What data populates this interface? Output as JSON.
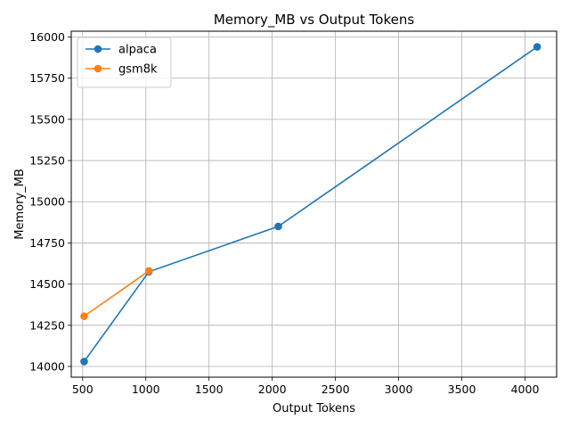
{
  "chart_data": {
    "type": "line",
    "title": "Memory_MB vs Output Tokens",
    "xlabel": "Output Tokens",
    "ylabel": "Memory_MB",
    "xlim": [
      410,
      4250
    ],
    "ylim": [
      13935,
      16035
    ],
    "xticks": [
      500,
      1000,
      1500,
      2000,
      2500,
      3000,
      3500,
      4000
    ],
    "yticks": [
      14000,
      14250,
      14500,
      14750,
      15000,
      15250,
      15500,
      15750,
      16000
    ],
    "grid": true,
    "legend_position": "top-left",
    "series": [
      {
        "name": "alpaca",
        "color": "#1f77b4",
        "x": [
          512,
          1024,
          2048,
          4096
        ],
        "y": [
          14030,
          14575,
          14850,
          15940
        ]
      },
      {
        "name": "gsm8k",
        "color": "#ff7f0e",
        "x": [
          512,
          1024
        ],
        "y": [
          14305,
          14580
        ]
      }
    ]
  }
}
